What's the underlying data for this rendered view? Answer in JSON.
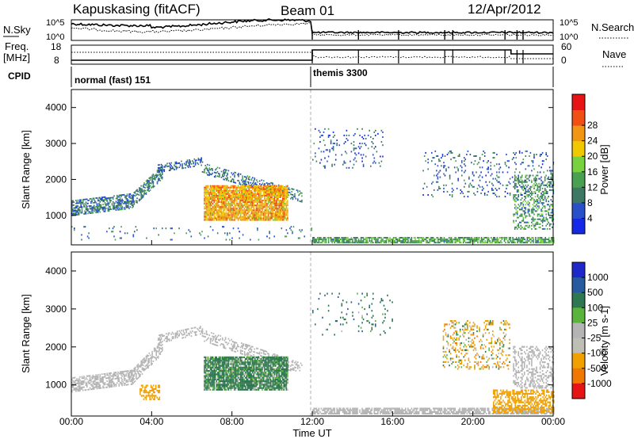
{
  "header": {
    "station": "Kapuskasing (fitACF)",
    "beam": "Beam 01",
    "date": "12/Apr/2012"
  },
  "top_panels": {
    "nsky_label": "N.Sky",
    "nsky_ticks": [
      "10^5",
      "10^0"
    ],
    "nsearch_label": "N.Search",
    "nsearch_ticks": [
      "10^5",
      "10^0"
    ],
    "freq_label": "Freq.",
    "freq_unit": "[MHz]",
    "freq_ticks": [
      "18",
      "8"
    ],
    "nave_label": "Nave",
    "nave_ticks": [
      "60",
      "0"
    ],
    "cpid_label": "CPID",
    "cpid_segments": [
      {
        "start_hour": 0,
        "end_hour": 12,
        "label": "normal (fast) 151"
      },
      {
        "start_hour": 12,
        "end_hour": 24,
        "label": "themis 3300"
      }
    ]
  },
  "x_axis": {
    "label": "Time UT",
    "ticks": [
      "00:00",
      "04:00",
      "08:00",
      "12:00",
      "16:00",
      "20:00",
      "00:00"
    ]
  },
  "colorbars": {
    "power": {
      "label": "Power [dB]",
      "tick_labels": [
        "4",
        "8",
        "12",
        "16",
        "20",
        "24",
        "28"
      ],
      "colors": [
        "#1428e6",
        "#2850c8",
        "#3c7864",
        "#48a050",
        "#78d240",
        "#f0c800",
        "#f09614",
        "#f05014",
        "#e61414"
      ]
    },
    "velocity": {
      "label": "Velocity [m s-1]",
      "tick_labels": [
        "1000",
        "500",
        "100",
        "25",
        "-25",
        "-100",
        "-500",
        "-1000"
      ],
      "colors": [
        "#1e28c8",
        "#285aa0",
        "#2d7850",
        "#5ab43c",
        "#b4b4b4",
        "#bebeb4",
        "#f0a000",
        "#f07800",
        "#e61414"
      ]
    }
  },
  "chart_data": [
    {
      "type": "heatmap",
      "title": "Power",
      "ylabel": "Slant Range [km]",
      "xlabel": "",
      "x_range_hours": [
        0,
        24
      ],
      "ylim_km": [
        180,
        4500
      ],
      "y_ticks": [
        1000,
        2000,
        3000,
        4000
      ],
      "colorbar_range_db": [
        0,
        32
      ],
      "scatter_regions": [
        {
          "t": [
            0.0,
            4.4
          ],
          "r": [
            700,
            2100
          ],
          "value": 7,
          "note": "diagonal band rising"
        },
        {
          "t": [
            4.0,
            6.8
          ],
          "r": [
            1800,
            2700
          ],
          "value": 7
        },
        {
          "t": [
            6.6,
            10.8
          ],
          "r": [
            800,
            1800
          ],
          "value": 22
        },
        {
          "t": [
            12.0,
            24.0
          ],
          "r": [
            200,
            400
          ],
          "value": 12
        },
        {
          "t": [
            12.0,
            24.0
          ],
          "r": [
            1600,
            3600
          ],
          "value": 6
        },
        {
          "t": [
            22.0,
            24.0
          ],
          "r": [
            600,
            2000
          ],
          "value": 10
        }
      ]
    },
    {
      "type": "heatmap",
      "title": "Velocity",
      "ylabel": "Slant Range [km]",
      "xlabel": "Time UT",
      "x_range_hours": [
        0,
        24
      ],
      "ylim_km": [
        180,
        4500
      ],
      "y_ticks": [
        1000,
        2000,
        3000,
        4000
      ],
      "colorbar_levels": [
        1000,
        500,
        100,
        25,
        -25,
        -100,
        -500,
        -1000
      ],
      "scatter_regions": [
        {
          "t": [
            0.0,
            4.4
          ],
          "r": [
            700,
            2100
          ],
          "value": 0,
          "note": "ground scatter"
        },
        {
          "t": [
            4.0,
            6.8
          ],
          "r": [
            1800,
            2700
          ],
          "value": 0
        },
        {
          "t": [
            6.6,
            10.8
          ],
          "r": [
            800,
            1800
          ],
          "value": 150
        },
        {
          "t": [
            12.0,
            24.0
          ],
          "r": [
            200,
            400
          ],
          "value": 0
        },
        {
          "t": [
            18.5,
            21.5
          ],
          "r": [
            1400,
            2700
          ],
          "value": -200
        },
        {
          "t": [
            21.0,
            24.0
          ],
          "r": [
            200,
            900
          ],
          "value": -300
        }
      ]
    }
  ]
}
